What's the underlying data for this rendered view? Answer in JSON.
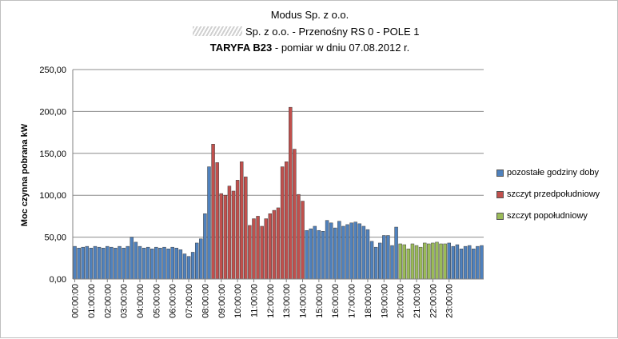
{
  "chart_data": {
    "type": "bar",
    "title_line1": "Modus Sp. z o.o.",
    "title_line2": "Sp. z o.o. - Przenośny RS 0 - POLE 1",
    "title_line3_bold": "TARYFA  B23",
    "title_line3_rest": " - pomiar w dniu 07.08.2012 r.",
    "ylabel": "Moc czynna  pobrana  kW",
    "ylim": [
      0,
      250
    ],
    "yticks": [
      "0,00",
      "50,00",
      "100,00",
      "150,00",
      "200,00",
      "250,00"
    ],
    "grid": true,
    "legend_position": "right",
    "xtick_labels": [
      "00:00:00",
      "01:00:00",
      "02:00:00",
      "03:00:00",
      "04:00:00",
      "05:00:00",
      "06:00:00",
      "07:00:00",
      "08:00:00",
      "09:00:00",
      "10:00:00",
      "11:00:00",
      "12:00:00",
      "13:00:00",
      "14:00:00",
      "15:00:00",
      "16:00:00",
      "17:00:00",
      "18:00:00",
      "19:00:00",
      "20:00:00",
      "21:00:00",
      "22:00:00",
      "23:00:00"
    ],
    "series": [
      {
        "name": "pozostałe godziny doby",
        "color": "#4f81bd"
      },
      {
        "name": "szczyt przedpołudniowy",
        "color": "#c0504d"
      },
      {
        "name": "szczyt popołudniowy",
        "color": "#9bbb59"
      }
    ],
    "interval_minutes": 15,
    "values": [
      39,
      37,
      38,
      39,
      37,
      39,
      38,
      37,
      39,
      38,
      37,
      39,
      37,
      39,
      50,
      44,
      39,
      37,
      38,
      36,
      38,
      37,
      38,
      36,
      38,
      37,
      35,
      30,
      27,
      32,
      43,
      48,
      78,
      134,
      161,
      139,
      102,
      100,
      111,
      105,
      118,
      140,
      122,
      64,
      72,
      75,
      63,
      72,
      78,
      82,
      85,
      134,
      140,
      205,
      155,
      101,
      93,
      58,
      60,
      63,
      58,
      57,
      70,
      67,
      61,
      69,
      63,
      65,
      67,
      68,
      66,
      63,
      59,
      45,
      38,
      43,
      52,
      52,
      40,
      62,
      42,
      41,
      36,
      42,
      40,
      38,
      43,
      42,
      43,
      44,
      42,
      42,
      43,
      39,
      41,
      36,
      39,
      40,
      36,
      39,
      40
    ],
    "series_index": [
      0,
      0,
      0,
      0,
      0,
      0,
      0,
      0,
      0,
      0,
      0,
      0,
      0,
      0,
      0,
      0,
      0,
      0,
      0,
      0,
      0,
      0,
      0,
      0,
      0,
      0,
      0,
      0,
      0,
      0,
      0,
      0,
      0,
      0,
      1,
      1,
      1,
      1,
      1,
      1,
      1,
      1,
      1,
      1,
      1,
      1,
      1,
      1,
      1,
      1,
      1,
      1,
      1,
      1,
      1,
      1,
      1,
      0,
      0,
      0,
      0,
      0,
      0,
      0,
      0,
      0,
      0,
      0,
      0,
      0,
      0,
      0,
      0,
      0,
      0,
      0,
      0,
      0,
      0,
      0,
      2,
      2,
      2,
      2,
      2,
      2,
      2,
      2,
      2,
      2,
      2,
      2,
      0,
      0,
      0,
      0,
      0,
      0,
      0,
      0,
      0
    ]
  }
}
